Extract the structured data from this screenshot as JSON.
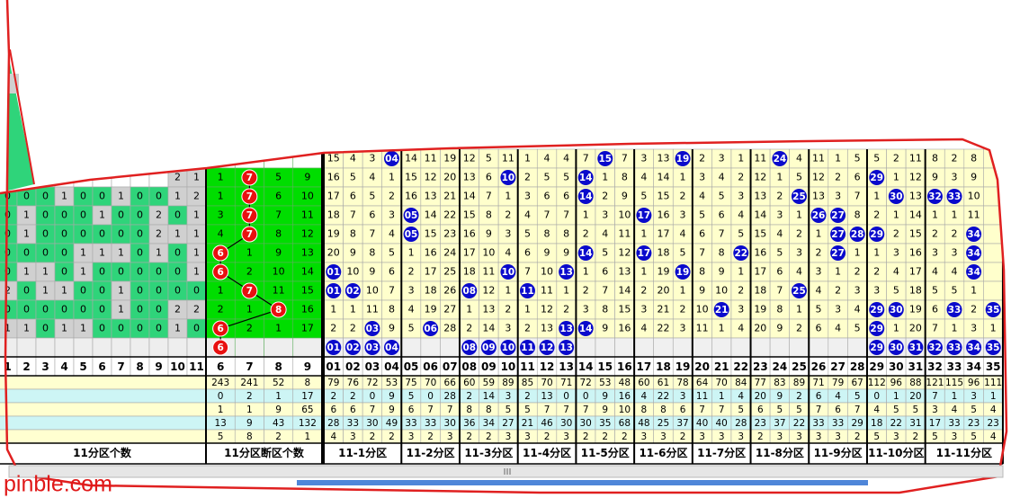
{
  "headers": {
    "left": [
      "1",
      "2",
      "3",
      "4",
      "5",
      "6",
      "7",
      "8",
      "9",
      "10",
      "11"
    ],
    "mid": [
      "6",
      "7",
      "8",
      "9"
    ],
    "right": [
      "01",
      "02",
      "03",
      "04",
      "05",
      "06",
      "07",
      "08",
      "09",
      "10",
      "11",
      "12",
      "13",
      "14",
      "15",
      "16",
      "17",
      "18",
      "19",
      "20",
      "21",
      "22",
      "23",
      "24",
      "25",
      "26",
      "27",
      "28",
      "29",
      "30",
      "31",
      "32",
      "33",
      "34",
      "35"
    ]
  },
  "rows": [
    {
      "left": [
        null,
        null,
        null,
        null,
        null,
        null,
        null,
        null,
        null,
        null,
        null
      ],
      "mid": [
        null,
        null,
        null,
        null
      ],
      "right": [
        15,
        4,
        3,
        "04",
        14,
        11,
        19,
        12,
        5,
        11,
        1,
        4,
        4,
        7,
        "15",
        7,
        3,
        13,
        "19",
        2,
        3,
        1,
        11,
        "24",
        4,
        11,
        1,
        5,
        5,
        2,
        11,
        8,
        2,
        8,
        null
      ]
    },
    {
      "left": [
        null,
        null,
        null,
        null,
        null,
        null,
        null,
        null,
        null,
        2,
        1
      ],
      "mid": [
        1,
        "7",
        5,
        9
      ],
      "right": [
        16,
        5,
        4,
        1,
        15,
        12,
        20,
        13,
        6,
        "10",
        2,
        5,
        5,
        "14",
        1,
        8,
        4,
        14,
        1,
        3,
        4,
        2,
        12,
        1,
        5,
        12,
        2,
        6,
        "29",
        1,
        12,
        9,
        3,
        9,
        null
      ]
    },
    {
      "left": [
        0,
        0,
        0,
        1,
        0,
        0,
        1,
        0,
        0,
        1,
        2
      ],
      "mid": [
        1,
        "7",
        6,
        10
      ],
      "right": [
        17,
        6,
        5,
        2,
        16,
        13,
        21,
        14,
        7,
        1,
        3,
        6,
        6,
        "14",
        2,
        9,
        5,
        15,
        2,
        4,
        5,
        3,
        13,
        2,
        "25",
        13,
        3,
        7,
        1,
        "30",
        13,
        "32",
        "33",
        10,
        null
      ]
    },
    {
      "left": [
        0,
        1,
        0,
        0,
        0,
        1,
        0,
        0,
        2,
        0,
        1
      ],
      "mid": [
        3,
        "7",
        7,
        11
      ],
      "right": [
        18,
        7,
        6,
        3,
        "05",
        14,
        22,
        15,
        8,
        2,
        4,
        7,
        7,
        1,
        3,
        10,
        "17",
        16,
        3,
        5,
        6,
        4,
        14,
        3,
        1,
        "26",
        "27",
        8,
        2,
        1,
        14,
        1,
        1,
        11,
        null
      ]
    },
    {
      "left": [
        0,
        1,
        0,
        0,
        0,
        0,
        0,
        0,
        2,
        1,
        1
      ],
      "mid": [
        4,
        "7",
        8,
        12
      ],
      "right": [
        19,
        8,
        7,
        4,
        "05",
        15,
        23,
        16,
        9,
        3,
        5,
        8,
        8,
        2,
        4,
        11,
        1,
        17,
        4,
        6,
        7,
        5,
        15,
        4,
        2,
        1,
        "27",
        "28",
        "29",
        2,
        15,
        2,
        2,
        "34",
        null
      ]
    },
    {
      "left": [
        0,
        0,
        0,
        0,
        1,
        1,
        1,
        0,
        1,
        0,
        1
      ],
      "mid": [
        "6",
        1,
        9,
        13
      ],
      "right": [
        20,
        9,
        8,
        5,
        1,
        16,
        24,
        17,
        10,
        4,
        6,
        9,
        9,
        "14",
        5,
        12,
        "17",
        18,
        5,
        7,
        8,
        "22",
        16,
        5,
        3,
        2,
        "27",
        1,
        1,
        3,
        16,
        3,
        3,
        "34",
        null
      ]
    },
    {
      "left": [
        0,
        1,
        1,
        0,
        1,
        0,
        0,
        0,
        0,
        0,
        1
      ],
      "mid": [
        "6",
        2,
        10,
        14
      ],
      "right": [
        "01",
        10,
        9,
        6,
        2,
        17,
        25,
        18,
        11,
        "10",
        7,
        10,
        "13",
        1,
        6,
        13,
        1,
        19,
        "19",
        8,
        9,
        1,
        17,
        6,
        4,
        3,
        1,
        2,
        2,
        4,
        17,
        4,
        4,
        "34",
        null
      ]
    },
    {
      "left": [
        2,
        0,
        1,
        1,
        0,
        0,
        1,
        0,
        0,
        0,
        0
      ],
      "mid": [
        1,
        "7",
        11,
        15
      ],
      "right": [
        "01",
        "02",
        10,
        7,
        3,
        18,
        26,
        "08",
        12,
        1,
        "11",
        11,
        1,
        2,
        7,
        14,
        2,
        20,
        1,
        9,
        10,
        2,
        18,
        7,
        "25",
        4,
        2,
        3,
        3,
        5,
        18,
        5,
        5,
        1,
        null
      ]
    },
    {
      "left": [
        0,
        0,
        0,
        0,
        0,
        0,
        1,
        0,
        0,
        2,
        2
      ],
      "mid": [
        2,
        1,
        "8",
        16
      ],
      "right": [
        1,
        1,
        11,
        8,
        4,
        19,
        27,
        1,
        13,
        2,
        1,
        12,
        2,
        3,
        8,
        15,
        3,
        21,
        2,
        10,
        "21",
        3,
        19,
        8,
        1,
        5,
        3,
        4,
        "29",
        "30",
        19,
        6,
        "33",
        2,
        "35"
      ]
    },
    {
      "left": [
        1,
        1,
        0,
        1,
        1,
        0,
        0,
        0,
        0,
        1,
        0
      ],
      "mid": [
        "6",
        2,
        1,
        17
      ],
      "right": [
        2,
        2,
        "03",
        9,
        5,
        "06",
        28,
        2,
        14,
        3,
        2,
        13,
        "13",
        "14",
        9,
        16,
        4,
        22,
        3,
        11,
        1,
        4,
        20,
        9,
        2,
        6,
        4,
        5,
        "29",
        1,
        20,
        7,
        1,
        3,
        1
      ]
    },
    {
      "left": [
        null,
        null,
        null,
        null,
        null,
        null,
        null,
        null,
        null,
        null,
        null
      ],
      "mid": [
        "6",
        null,
        null,
        null
      ],
      "right": [
        "01",
        "02",
        "03",
        "04",
        null,
        null,
        null,
        "08",
        "09",
        "10",
        "11",
        "12",
        "13",
        null,
        null,
        null,
        null,
        null,
        null,
        null,
        null,
        null,
        null,
        null,
        null,
        null,
        null,
        null,
        "29",
        "30",
        "31",
        "32",
        "33",
        "34",
        "35"
      ]
    }
  ],
  "stats": [
    {
      "mid": [
        243,
        241,
        52,
        8
      ],
      "right": [
        79,
        76,
        72,
        53,
        75,
        70,
        66,
        60,
        59,
        89,
        85,
        70,
        71,
        72,
        53,
        48,
        60,
        61,
        78,
        64,
        70,
        84,
        77,
        83,
        89,
        71,
        79,
        67,
        112,
        96,
        88,
        121,
        115,
        96,
        111
      ]
    },
    {
      "mid": [
        0,
        2,
        1,
        17
      ],
      "right": [
        2,
        2,
        0,
        9,
        5,
        0,
        28,
        2,
        14,
        3,
        2,
        13,
        0,
        0,
        9,
        16,
        4,
        22,
        3,
        11,
        1,
        4,
        20,
        9,
        2,
        6,
        4,
        5,
        0,
        1,
        20,
        7,
        1,
        3,
        1
      ]
    },
    {
      "mid": [
        1,
        1,
        9,
        65
      ],
      "right": [
        6,
        6,
        7,
        9,
        6,
        7,
        7,
        8,
        8,
        5,
        5,
        7,
        7,
        7,
        9,
        10,
        8,
        8,
        6,
        7,
        7,
        5,
        6,
        5,
        5,
        7,
        6,
        7,
        4,
        5,
        5,
        3,
        4,
        5,
        4
      ]
    },
    {
      "mid": [
        13,
        9,
        43,
        132
      ],
      "right": [
        28,
        33,
        30,
        49,
        33,
        33,
        30,
        36,
        34,
        27,
        21,
        46,
        30,
        30,
        35,
        68,
        48,
        25,
        37,
        40,
        40,
        28,
        23,
        37,
        22,
        33,
        33,
        29,
        18,
        22,
        31,
        17,
        33,
        23,
        23
      ]
    },
    {
      "mid": [
        5,
        8,
        2,
        1
      ],
      "right": [
        4,
        3,
        2,
        2,
        3,
        2,
        3,
        2,
        2,
        3,
        3,
        2,
        3,
        2,
        2,
        2,
        3,
        3,
        2,
        3,
        3,
        3,
        2,
        3,
        3,
        3,
        3,
        2,
        5,
        3,
        2,
        5,
        3,
        5,
        4
      ]
    }
  ],
  "footer": {
    "left": "11分区个数",
    "mid": "11分区断区个数",
    "groups": [
      "11-1分区",
      "11-2分区",
      "11-3分区",
      "11-4分区",
      "11-5分区",
      "11-6分区",
      "11-7分区",
      "11-8分区",
      "11-9分区",
      "11-10分区",
      "11-11分区"
    ]
  },
  "watermark": "pinble.com"
}
